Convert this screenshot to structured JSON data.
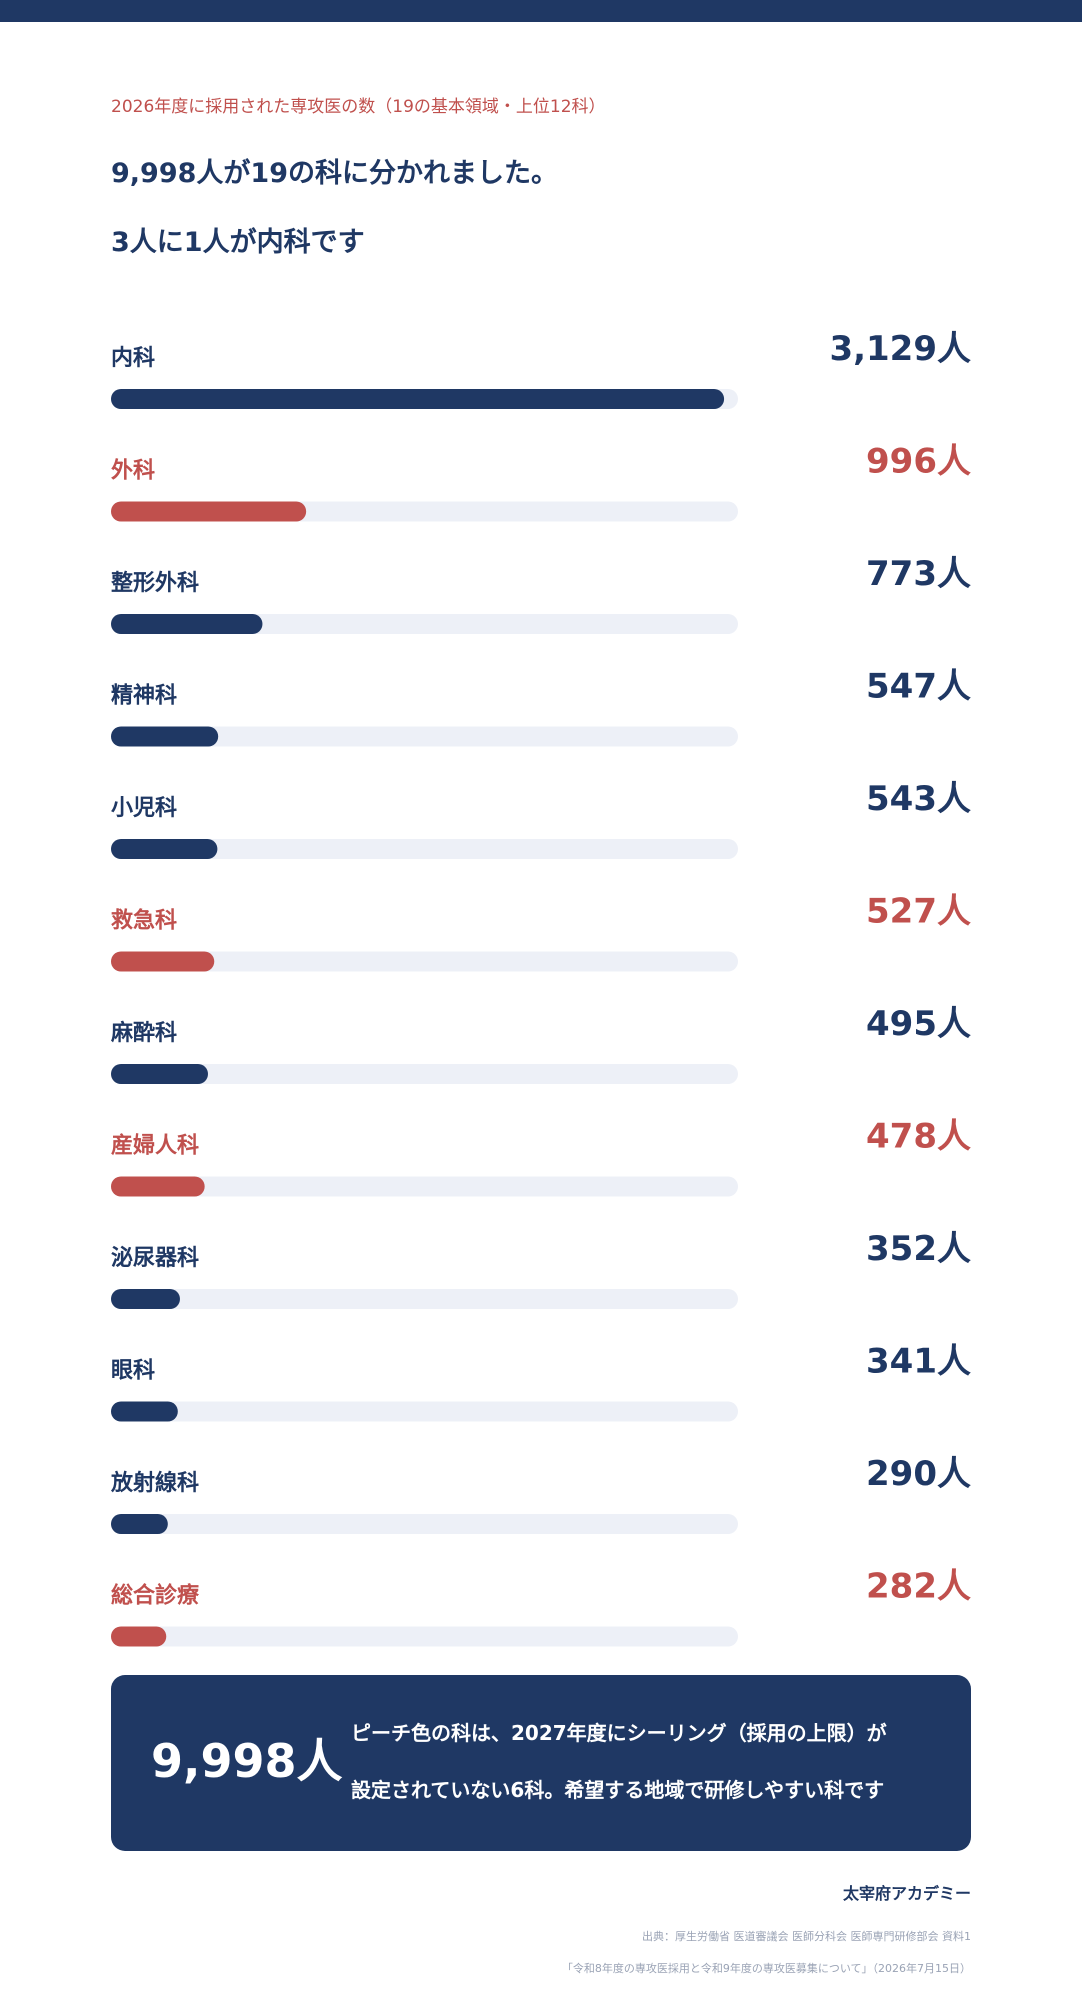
{
  "header": {
    "subtitle": "2026年度に採用された専攻医の数（19の基本領域・上位12科）",
    "headline_1": "9,998人が19の科に分かれました。",
    "headline_2": "3人に1人が内科です"
  },
  "colors": {
    "navy": "#1f3864",
    "peach": "#c0504d",
    "track": "#edf0f7"
  },
  "chart_data": {
    "type": "bar",
    "orientation": "horizontal",
    "grid": false,
    "legend": "none",
    "value_suffix": "人",
    "xlim": [
      0,
      3200
    ],
    "categories": [
      "内科",
      "外科",
      "整形外科",
      "精神科",
      "小児科",
      "救急科",
      "麻酔科",
      "産婦人科",
      "泌尿器科",
      "眼科",
      "放射線科",
      "総合診療"
    ],
    "values": [
      3129,
      996,
      773,
      547,
      543,
      527,
      495,
      478,
      352,
      341,
      290,
      282
    ],
    "value_labels": [
      "3,129人",
      "996人",
      "773人",
      "547人",
      "543人",
      "527人",
      "495人",
      "478人",
      "352人",
      "341人",
      "290人",
      "282人"
    ],
    "highlighted": [
      false,
      true,
      false,
      false,
      false,
      true,
      false,
      true,
      false,
      false,
      false,
      true
    ]
  },
  "summary": {
    "total": "9,998人",
    "note_1": "ピーチ色の科は、2027年度にシーリング（採用の上限）が",
    "note_2": "設定されていない6科。希望する地域で研修しやすい科です"
  },
  "footer": {
    "brand": "太宰府アカデミー",
    "source_1": "出典：厚生労働省 医道審議会 医師分科会 医師専門研修部会 資料1",
    "source_2": "「令和8年度の専攻医採用と令和9年度の専攻医募集について」（2026年7月15日）"
  }
}
